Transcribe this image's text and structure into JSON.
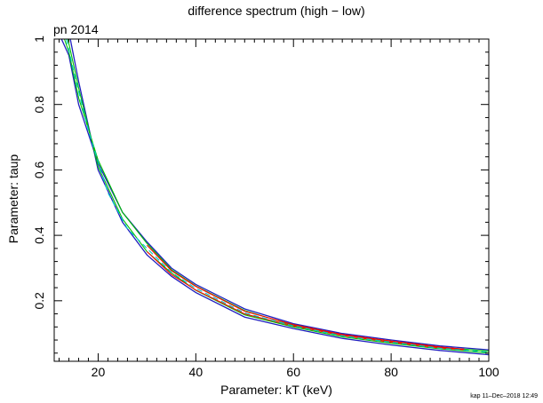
{
  "chart_data": {
    "type": "contour",
    "title": "difference spectrum (high − low)",
    "subtitle": "pn 2014",
    "xlabel": "Parameter: kT (keV)",
    "ylabel": "Parameter: taup",
    "xlim": [
      11,
      100
    ],
    "ylim": [
      0.015,
      1.0
    ],
    "x_ticks": [
      20,
      40,
      60,
      80,
      100
    ],
    "y_ticks": [
      0.2,
      0.4,
      0.6,
      0.8,
      1
    ],
    "x_tick_labels": [
      "20",
      "40",
      "60",
      "80",
      "100"
    ],
    "y_tick_labels": [
      "0.2",
      "0.4",
      "0.6",
      "0.8",
      "1"
    ],
    "colors": {
      "outer": "#1f1fbf",
      "middle": "#00c000",
      "inner": "#ff0000",
      "dash": "#00c8c8"
    },
    "curves": [
      {
        "level": "outer-low",
        "color": "outer",
        "style": "solid",
        "x": [
          14.3,
          16,
          20,
          25,
          30,
          35,
          40,
          50,
          60,
          70,
          80,
          90,
          100
        ],
        "y": [
          1.0,
          0.87,
          0.6,
          0.44,
          0.34,
          0.275,
          0.225,
          0.15,
          0.115,
          0.085,
          0.065,
          0.048,
          0.035
        ]
      },
      {
        "level": "outer-high",
        "color": "outer",
        "style": "solid",
        "x": [
          12.5,
          14,
          16,
          20,
          25,
          30,
          35,
          40,
          50,
          60,
          70,
          80,
          90,
          100
        ],
        "y": [
          1.0,
          0.95,
          0.8,
          0.62,
          0.47,
          0.38,
          0.3,
          0.25,
          0.175,
          0.13,
          0.1,
          0.08,
          0.062,
          0.05
        ]
      },
      {
        "level": "middle-low",
        "color": "middle",
        "style": "solid",
        "x": [
          13.8,
          16,
          20,
          25,
          30,
          35,
          40,
          50,
          60,
          70,
          80,
          90,
          100
        ],
        "y": [
          1.0,
          0.85,
          0.61,
          0.45,
          0.35,
          0.285,
          0.232,
          0.157,
          0.12,
          0.09,
          0.07,
          0.053,
          0.04
        ]
      },
      {
        "level": "middle-high",
        "color": "middle",
        "style": "solid",
        "x": [
          13.1,
          14,
          16,
          20,
          25,
          30,
          35,
          40,
          50,
          60,
          70,
          80,
          90,
          100
        ],
        "y": [
          1.0,
          0.96,
          0.82,
          0.63,
          0.47,
          0.375,
          0.295,
          0.245,
          0.17,
          0.125,
          0.096,
          0.076,
          0.058,
          0.046
        ]
      },
      {
        "level": "inner-low",
        "color": "inner",
        "style": "solid",
        "x": [
          30,
          35,
          40,
          50,
          60,
          70,
          80,
          90,
          95
        ],
        "y": [
          0.35,
          0.28,
          0.233,
          0.16,
          0.123,
          0.094,
          0.073,
          0.056,
          0.05
        ]
      },
      {
        "level": "inner-high",
        "color": "inner",
        "style": "solid",
        "x": [
          30,
          35,
          40,
          50,
          60,
          70,
          80,
          90,
          95
        ],
        "y": [
          0.37,
          0.292,
          0.244,
          0.168,
          0.127,
          0.097,
          0.077,
          0.059,
          0.052
        ]
      },
      {
        "level": "center-dash",
        "color": "dash",
        "style": "dashed",
        "x": [
          13.5,
          15,
          18,
          22,
          26,
          30,
          35,
          40,
          50,
          60,
          70,
          80,
          90,
          100
        ],
        "y": [
          1.0,
          0.9,
          0.72,
          0.53,
          0.42,
          0.36,
          0.287,
          0.238,
          0.163,
          0.123,
          0.093,
          0.073,
          0.055,
          0.043
        ]
      }
    ],
    "grid": false,
    "legend": "none"
  },
  "footer": {
    "timestamp": "kap 11–Dec–2018 12:49"
  }
}
